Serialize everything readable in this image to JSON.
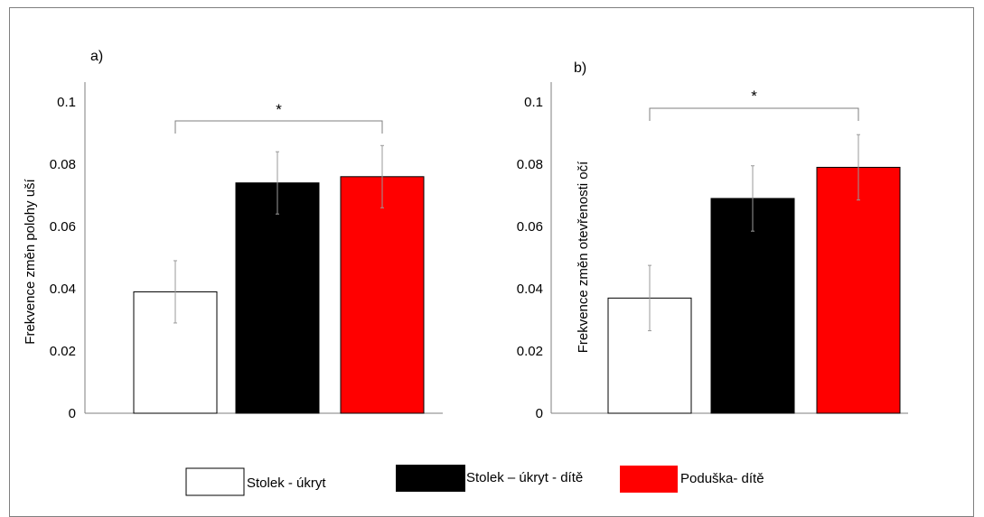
{
  "chart_data": [
    {
      "type": "bar",
      "panel_label": "a)",
      "ylabel": "Frekvence změn polohy uší",
      "ylim": [
        0,
        0.1
      ],
      "yticks": [
        "0",
        "0.02",
        "0.04",
        "0.06",
        "0.08",
        "0.1"
      ],
      "categories": [
        "Stolek - úkryt",
        "Stolek – úkryt - dítě",
        "Poduška- dítě"
      ],
      "values": [
        0.039,
        0.074,
        0.076
      ],
      "errors": [
        0.01,
        0.01,
        0.01
      ],
      "colors": [
        "#ffffff",
        "#000000",
        "#ff0000"
      ],
      "significance": {
        "from": 0,
        "to": 2,
        "label": "*"
      }
    },
    {
      "type": "bar",
      "panel_label": "b)",
      "ylabel": "Frekvence změn otevřenosti očí",
      "ylim": [
        0,
        0.1
      ],
      "yticks": [
        "0",
        "0.02",
        "0.04",
        "0.06",
        "0.08",
        "0.1"
      ],
      "categories": [
        "Stolek - úkryt",
        "Stolek – úkryt - dítě",
        "Poduška- dítě"
      ],
      "values": [
        0.037,
        0.069,
        0.079
      ],
      "errors": [
        0.0105,
        0.0105,
        0.0105
      ],
      "colors": [
        "#ffffff",
        "#000000",
        "#ff0000"
      ],
      "significance": {
        "from": 0,
        "to": 2,
        "label": "*"
      }
    }
  ],
  "legend": [
    {
      "label": "Stolek - úkryt",
      "color": "#ffffff"
    },
    {
      "label": "Stolek – úkryt - dítě",
      "color": "#000000"
    },
    {
      "label": "Poduška- dítě",
      "color": "#ff0000"
    }
  ]
}
